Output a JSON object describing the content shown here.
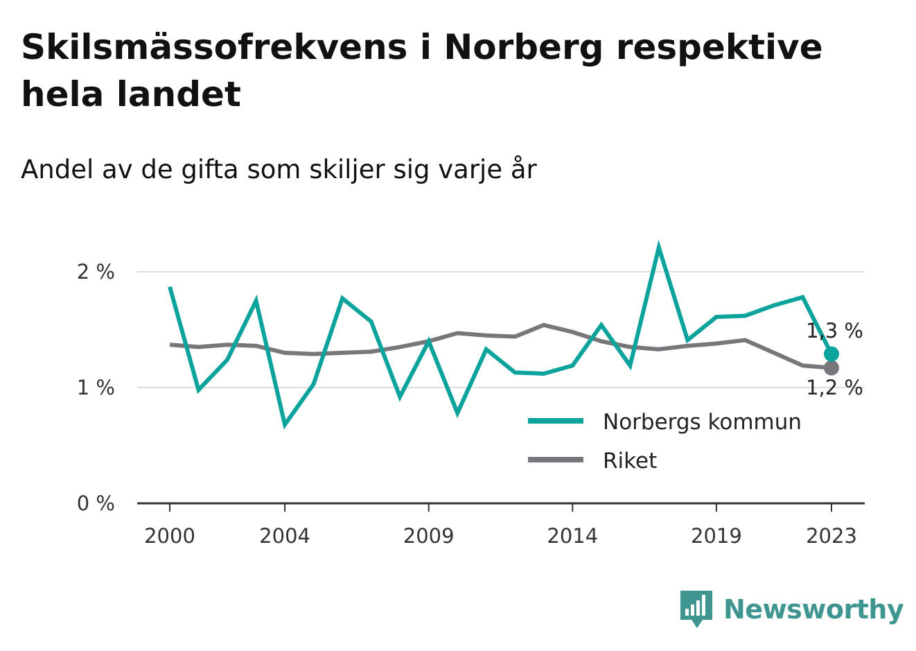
{
  "title": "Skilsmässofrekvens i Norberg respektive hela landet",
  "subtitle": "Andel av de gifta som skiljer sig varje år",
  "brand": {
    "name": "Newsworthy",
    "color": "#3f9691",
    "icon": "bar-chart-speech-bubble-icon"
  },
  "colors": {
    "norberg": "#0ba39b",
    "riket": "#77767b",
    "grid": "#dddddd",
    "axis": "#333333"
  },
  "chart_data": {
    "type": "line",
    "title": "Skilsmässofrekvens i Norberg respektive hela landet",
    "subtitle": "Andel av de gifta som skiljer sig varje år",
    "x": [
      2000,
      2001,
      2002,
      2003,
      2004,
      2005,
      2006,
      2007,
      2008,
      2009,
      2010,
      2011,
      2012,
      2013,
      2014,
      2015,
      2016,
      2017,
      2018,
      2019,
      2020,
      2021,
      2022,
      2023
    ],
    "x_ticks": [
      "2000",
      "2004",
      "2009",
      "2014",
      "2019",
      "2023"
    ],
    "y_ticks": [
      "0 %",
      "1 %",
      "2 %"
    ],
    "ylim": [
      0,
      2.3
    ],
    "grid": true,
    "legend_position": "bottom-right",
    "series": [
      {
        "name": "Norbergs kommun",
        "color": "#0ba39b",
        "values": [
          1.87,
          0.98,
          1.24,
          1.75,
          0.68,
          1.03,
          1.77,
          1.57,
          0.92,
          1.4,
          0.78,
          1.33,
          1.13,
          1.12,
          1.19,
          1.54,
          1.19,
          2.21,
          1.41,
          1.61,
          1.62,
          1.71,
          1.78,
          1.29
        ],
        "end_label": "1,3 %"
      },
      {
        "name": "Riket",
        "color": "#77767b",
        "values": [
          1.37,
          1.35,
          1.37,
          1.36,
          1.3,
          1.29,
          1.3,
          1.31,
          1.35,
          1.4,
          1.47,
          1.45,
          1.44,
          1.54,
          1.48,
          1.4,
          1.35,
          1.33,
          1.36,
          1.38,
          1.41,
          1.3,
          1.19,
          1.17
        ],
        "end_label": "1,2 %"
      }
    ]
  }
}
